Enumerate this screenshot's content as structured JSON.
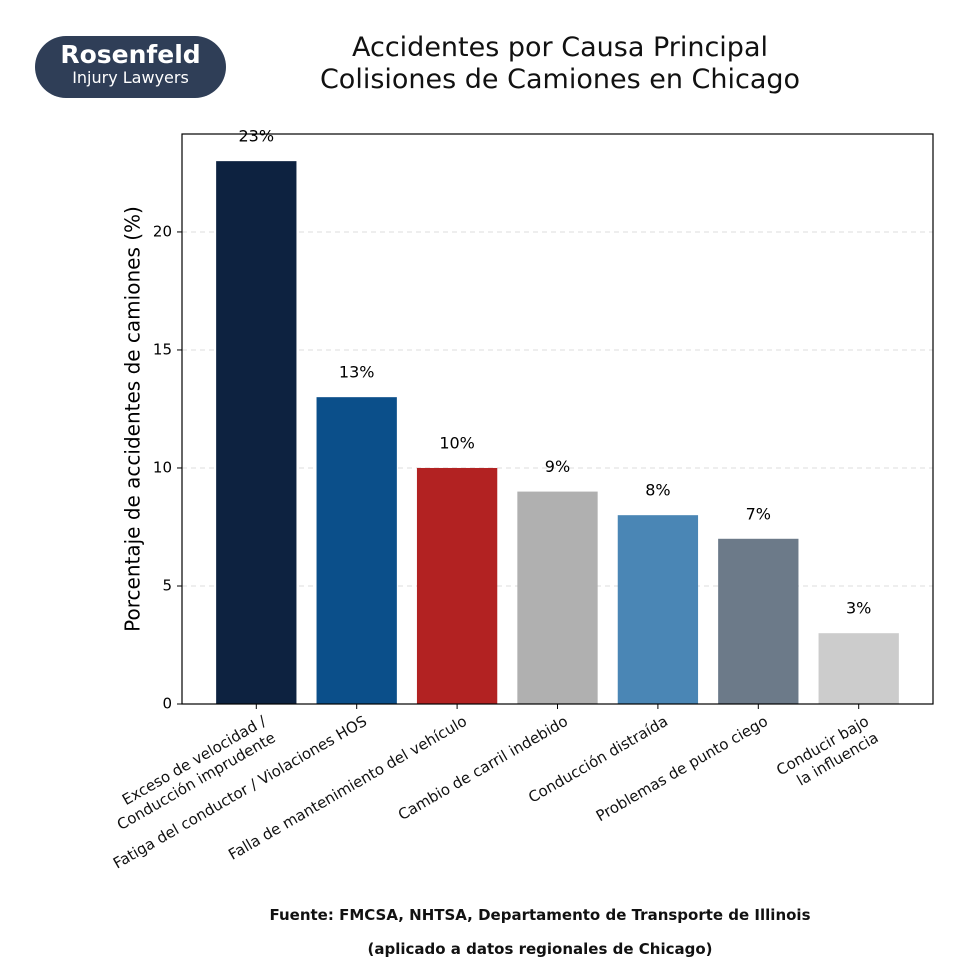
{
  "logo": {
    "name": "Rosenfeld",
    "tagline": "Injury Lawyers"
  },
  "chart_data": {
    "type": "bar",
    "title": "Accidentes por Causa Principal\nColisiones de Camiones en Chicago",
    "y_label": "Porcentaje de accidentes de camiones (%)",
    "categories": [
      "Exceso de velocidad /\nConducción imprudente",
      "Fatiga del conductor / Violaciones HOS",
      "Falla de mantenimiento del vehículo",
      "Cambio de carril indebido",
      "Conducción distraída",
      "Problemas de punto ciego",
      "Conducir bajo la influencia"
    ],
    "values": [
      23,
      13,
      10,
      9,
      8,
      7,
      3
    ],
    "value_labels": [
      "23%",
      "13%",
      "10%",
      "9%",
      "8%",
      "7%",
      "3%"
    ],
    "colors": [
      "#0d2240",
      "#0b4f8a",
      "#b22222",
      "#b0b0b0",
      "#4a86b5",
      "#6c7a89",
      "#cccccc"
    ],
    "ylim": [
      0,
      24.15
    ],
    "yticks": [
      0,
      5,
      10,
      15,
      20
    ],
    "grid": true
  },
  "footer": {
    "source": "Fuente: FMCSA, NHTSA, Departamento de Transporte de Illinois",
    "note": "(aplicado a datos regionales de Chicago)"
  }
}
